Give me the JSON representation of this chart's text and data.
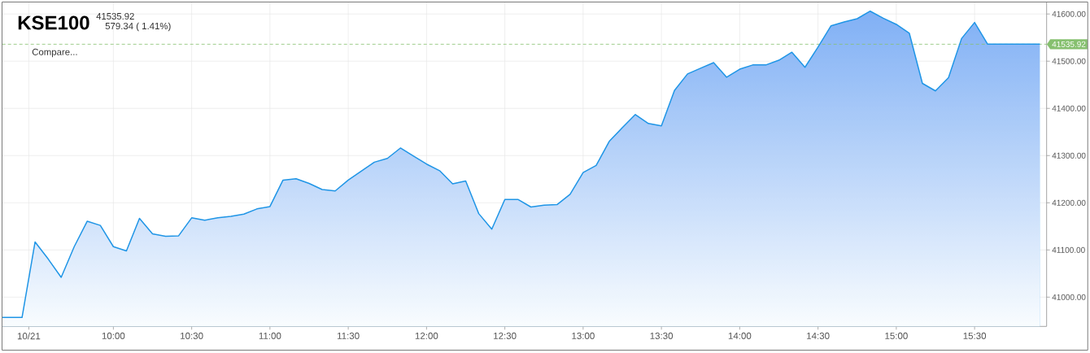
{
  "chart_data": {
    "type": "area",
    "title": "KSE100",
    "subtitle": "41535.92",
    "annotations": [
      "579.34 ( 1.41%)",
      "Compare..."
    ],
    "color": "#1f95e6",
    "grid": true,
    "x": [
      9.29,
      9.4167,
      9.5,
      9.5833,
      9.6667,
      9.75,
      9.8333,
      9.9167,
      10,
      10.0833,
      10.1667,
      10.25,
      10.3333,
      10.4167,
      10.5,
      10.5833,
      10.6667,
      10.75,
      10.8333,
      10.9167,
      11,
      11.0833,
      11.1667,
      11.25,
      11.3333,
      11.4167,
      11.5,
      11.5833,
      11.6667,
      11.75,
      11.8333,
      11.9167,
      12,
      12.0833,
      12.1667,
      12.25,
      12.3333,
      12.4167,
      12.5,
      12.5833,
      12.6667,
      12.75,
      12.8333,
      12.9167,
      13,
      13.0833,
      13.1667,
      13.25,
      13.3333,
      13.4167,
      13.5,
      13.5833,
      13.6667,
      13.75,
      13.8333,
      13.9167,
      14,
      14.0833,
      14.1667,
      14.25,
      14.3333,
      14.4167,
      14.5,
      14.5833,
      14.6667,
      14.75,
      14.8333,
      14.9167,
      15,
      15.0833,
      15.1667,
      15.25,
      15.3333,
      15.4167,
      15.5,
      15.5833,
      15.9167
    ],
    "values": [
      40957,
      40957,
      41117,
      41081,
      41042,
      41107,
      41161,
      41152,
      41107,
      41098,
      41167,
      41134,
      41129,
      41130,
      41168,
      41163,
      41168,
      41171,
      41176,
      41187,
      41192,
      41248,
      41251,
      41241,
      41228,
      41225,
      41248,
      41267,
      41286,
      41294,
      41316,
      41299,
      41282,
      41268,
      41240,
      41246,
      41177,
      41144,
      41207,
      41207,
      41191,
      41195,
      41196,
      41218,
      41264,
      41279,
      41330,
      41359,
      41387,
      41368,
      41363,
      41438,
      41473,
      41485,
      41497,
      41466,
      41483,
      41492,
      41492,
      41502,
      41519,
      41487,
      41530,
      41575,
      41583,
      41590,
      41606,
      41591,
      41578,
      41559,
      41453,
      41437,
      41465,
      41548,
      41582,
      41536,
      41536
    ],
    "xlim": [
      9.29,
      15.96
    ],
    "ylim": [
      40938,
      41625
    ],
    "xticks": [
      {
        "value": 9.46,
        "label": "10/21"
      },
      {
        "value": 10,
        "label": "10:00"
      },
      {
        "value": 10.5,
        "label": "10:30"
      },
      {
        "value": 11,
        "label": "11:00"
      },
      {
        "value": 11.5,
        "label": "11:30"
      },
      {
        "value": 12,
        "label": "12:00"
      },
      {
        "value": 12.5,
        "label": "12:30"
      },
      {
        "value": 13,
        "label": "13:00"
      },
      {
        "value": 13.5,
        "label": "13:30"
      },
      {
        "value": 14,
        "label": "14:00"
      },
      {
        "value": 14.5,
        "label": "14:30"
      },
      {
        "value": 15,
        "label": "15:00"
      },
      {
        "value": 15.5,
        "label": "15:30"
      }
    ],
    "yticks": [
      {
        "value": 41000,
        "label": "41000.00"
      },
      {
        "value": 41100,
        "label": "41100.00"
      },
      {
        "value": 41200,
        "label": "41200.00"
      },
      {
        "value": 41300,
        "label": "41300.00"
      },
      {
        "value": 41400,
        "label": "41400.00"
      },
      {
        "value": 41500,
        "label": "41500.00"
      },
      {
        "value": 41600,
        "label": "41600.00"
      }
    ],
    "ref_lines": [
      {
        "axis": "y",
        "value": 41535.92,
        "label": "41535.92",
        "color": "#86c06f",
        "line_style": "dashed"
      }
    ]
  }
}
